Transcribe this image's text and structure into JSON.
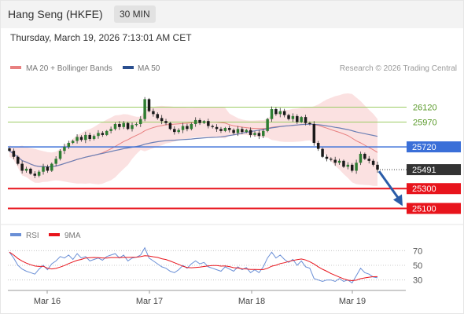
{
  "header": {
    "title": "Hang Seng (HKFE)",
    "timeframe": "30 MIN",
    "datetime": "Thursday, March 19, 2026 7:13:01 AM CET"
  },
  "legend": {
    "bollinger": "MA 20 + Bollinger Bands",
    "ma50": "MA 50",
    "copyright": "Research © 2026 Trading Central",
    "rsi": "RSI",
    "rsi_ma": "9MA"
  },
  "colors": {
    "resistance": "#9ccc65",
    "pivot": "#3a6fd8",
    "support": "#e8141c",
    "current": "#333333",
    "bollinger": "#f8c8c8",
    "ma20": "#e88080",
    "ma50": "#6b7fb5",
    "rsi": "#6a8fd6",
    "rsi_ma": "#e8141c",
    "arrow": "#2a5ca8"
  },
  "chart_data": [
    {
      "type": "candlestick",
      "x_ticks": [
        "Mar 16",
        "Mar 17",
        "Mar 18",
        "Mar 19"
      ],
      "ylim": [
        24970,
        26440
      ],
      "levels": [
        {
          "label": "26120",
          "value": 26120,
          "kind": "resistance"
        },
        {
          "label": "25970",
          "value": 25970,
          "kind": "resistance"
        },
        {
          "label": "25720",
          "value": 25720,
          "kind": "pivot"
        },
        {
          "label": "25491",
          "value": 25491,
          "kind": "current"
        },
        {
          "label": "25300",
          "value": 25300,
          "kind": "support"
        },
        {
          "label": "25100",
          "value": 25100,
          "kind": "support"
        }
      ],
      "close": [
        25680,
        25620,
        25550,
        25480,
        25500,
        25450,
        25430,
        25470,
        25520,
        25480,
        25550,
        25600,
        25680,
        25720,
        25760,
        25780,
        25820,
        25790,
        25840,
        25800,
        25830,
        25860,
        25840,
        25880,
        25900,
        25950,
        25920,
        25960,
        25900,
        25940,
        25950,
        26000,
        26200,
        26080,
        26050,
        26010,
        25980,
        25960,
        25900,
        25870,
        25890,
        25930,
        25900,
        25950,
        25990,
        25960,
        25980,
        25930,
        25920,
        25900,
        25880,
        25910,
        25890,
        25860,
        25900,
        25870,
        25890,
        25840,
        25860,
        25830,
        25880,
        26000,
        26100,
        26050,
        26080,
        26040,
        26000,
        26030,
        25970,
        26020,
        25960,
        25950,
        25760,
        25700,
        25620,
        25600,
        25590,
        25560,
        25580,
        25520,
        25540,
        25480,
        25560,
        25650,
        25600,
        25580,
        25540,
        25491
      ],
      "ma50_visible": true,
      "bollinger_period": 20
    },
    {
      "type": "line",
      "name": "RSI",
      "ylim": [
        20,
        80
      ],
      "y_ticks": [
        "70",
        "50",
        "30"
      ],
      "values": [
        68,
        60,
        50,
        45,
        42,
        40,
        38,
        45,
        50,
        44,
        52,
        56,
        62,
        60,
        64,
        58,
        66,
        60,
        62,
        56,
        58,
        60,
        57,
        62,
        64,
        66,
        60,
        64,
        56,
        60,
        61,
        64,
        74,
        60,
        56,
        52,
        48,
        46,
        42,
        40,
        44,
        50,
        46,
        52,
        56,
        52,
        54,
        48,
        46,
        44,
        42,
        48,
        45,
        42,
        48,
        44,
        47,
        40,
        44,
        40,
        48,
        60,
        68,
        60,
        64,
        58,
        54,
        58,
        50,
        56,
        48,
        46,
        32,
        30,
        28,
        30,
        30,
        28,
        32,
        28,
        30,
        26,
        36,
        46,
        40,
        38,
        34,
        33
      ]
    }
  ]
}
